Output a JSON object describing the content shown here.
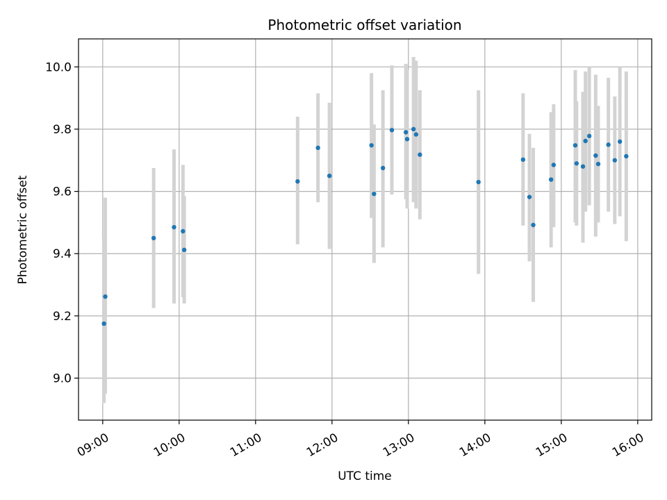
{
  "chart_data": {
    "type": "scatter",
    "title": "Photometric offset variation",
    "xlabel": "UTC time",
    "ylabel": "Photometric offset",
    "x_ticks": [
      "09:00",
      "10:00",
      "11:00",
      "12:00",
      "13:00",
      "14:00",
      "15:00",
      "16:00"
    ],
    "y_ticks": [
      "9.0",
      "9.2",
      "9.4",
      "9.6",
      "9.8",
      "10.0"
    ],
    "xlim": [
      "08:41",
      "16:11"
    ],
    "ylim": [
      8.865,
      10.09
    ],
    "grid": true,
    "errorbar_color": "#d3d3d3",
    "marker_color": "#1f77b4",
    "series": [
      {
        "points": [
          {
            "x": "09:01",
            "y": 9.175,
            "low": 8.92,
            "high": 9.45
          },
          {
            "x": "09:02",
            "y": 9.262,
            "low": 8.95,
            "high": 9.58
          },
          {
            "x": "09:40",
            "y": 9.45,
            "low": 9.225,
            "high": 9.675
          },
          {
            "x": "09:56",
            "y": 9.485,
            "low": 9.24,
            "high": 9.735
          },
          {
            "x": "10:03",
            "y": 9.472,
            "low": 9.26,
            "high": 9.685
          },
          {
            "x": "10:04",
            "y": 9.412,
            "low": 9.24,
            "high": 9.585
          },
          {
            "x": "11:33",
            "y": 9.632,
            "low": 9.43,
            "high": 9.84
          },
          {
            "x": "11:49",
            "y": 9.74,
            "low": 9.565,
            "high": 9.915
          },
          {
            "x": "11:58",
            "y": 9.65,
            "low": 9.415,
            "high": 9.885
          },
          {
            "x": "12:31",
            "y": 9.748,
            "low": 9.515,
            "high": 9.98
          },
          {
            "x": "12:33",
            "y": 9.592,
            "low": 9.37,
            "high": 9.815
          },
          {
            "x": "12:40",
            "y": 9.675,
            "low": 9.42,
            "high": 9.925
          },
          {
            "x": "12:47",
            "y": 9.797,
            "low": 9.59,
            "high": 10.005
          },
          {
            "x": "12:58",
            "y": 9.79,
            "low": 9.575,
            "high": 10.01
          },
          {
            "x": "12:59",
            "y": 9.768,
            "low": 9.545,
            "high": 9.99
          },
          {
            "x": "13:04",
            "y": 9.8,
            "low": 9.565,
            "high": 10.032
          },
          {
            "x": "13:06",
            "y": 9.783,
            "low": 9.545,
            "high": 10.02
          },
          {
            "x": "13:09",
            "y": 9.718,
            "low": 9.51,
            "high": 9.925
          },
          {
            "x": "13:55",
            "y": 9.63,
            "low": 9.335,
            "high": 9.925
          },
          {
            "x": "14:30",
            "y": 9.702,
            "low": 9.49,
            "high": 9.915
          },
          {
            "x": "14:35",
            "y": 9.582,
            "low": 9.375,
            "high": 9.785
          },
          {
            "x": "14:38",
            "y": 9.492,
            "low": 9.245,
            "high": 9.74
          },
          {
            "x": "14:52",
            "y": 9.638,
            "low": 9.42,
            "high": 9.855
          },
          {
            "x": "14:54",
            "y": 9.685,
            "low": 9.485,
            "high": 9.88
          },
          {
            "x": "15:11",
            "y": 9.748,
            "low": 9.5,
            "high": 9.99
          },
          {
            "x": "15:12",
            "y": 9.69,
            "low": 9.49,
            "high": 9.89
          },
          {
            "x": "15:17",
            "y": 9.68,
            "low": 9.435,
            "high": 9.92
          },
          {
            "x": "15:19",
            "y": 9.762,
            "low": 9.535,
            "high": 9.985
          },
          {
            "x": "15:22",
            "y": 9.778,
            "low": 9.555,
            "high": 10.0
          },
          {
            "x": "15:27",
            "y": 9.715,
            "low": 9.455,
            "high": 9.975
          },
          {
            "x": "15:29",
            "y": 9.688,
            "low": 9.5,
            "high": 9.875
          },
          {
            "x": "15:37",
            "y": 9.75,
            "low": 9.535,
            "high": 9.965
          },
          {
            "x": "15:42",
            "y": 9.7,
            "low": 9.495,
            "high": 9.905
          },
          {
            "x": "15:46",
            "y": 9.76,
            "low": 9.52,
            "high": 10.0
          },
          {
            "x": "15:51",
            "y": 9.713,
            "low": 9.44,
            "high": 9.985
          }
        ]
      }
    ]
  }
}
